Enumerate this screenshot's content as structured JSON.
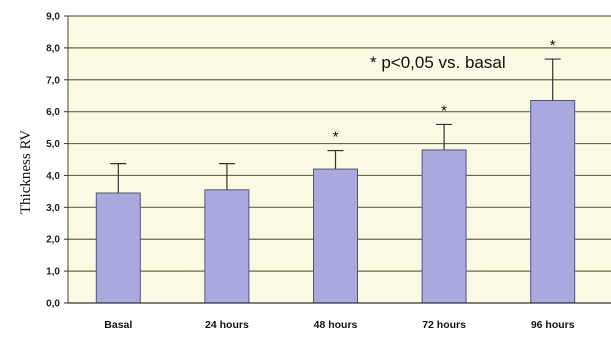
{
  "chart_data": {
    "type": "bar",
    "ylabel": "Thickness RV",
    "xlabel": "",
    "ylim": [
      0,
      9
    ],
    "yticks": [
      "0,0",
      "1,0",
      "2,0",
      "3,0",
      "4,0",
      "5,0",
      "6,0",
      "7,0",
      "8,0",
      "9,0"
    ],
    "grid": true,
    "categories": [
      "Basal",
      "24 hours",
      "48 hours",
      "72 hours",
      "96 hours"
    ],
    "values": [
      3.45,
      3.55,
      4.2,
      4.8,
      6.35
    ],
    "errors": [
      0.92,
      0.82,
      0.58,
      0.8,
      1.3
    ],
    "significant": [
      false,
      false,
      true,
      true,
      true
    ],
    "significance_marker": "*",
    "annotation": "* p<0,05 vs. basal",
    "colors": {
      "bar": "#a9a9e0",
      "bar_stroke": "#55557a",
      "grid": "#6b6b3a",
      "plot_bg": "#fbf8e3"
    }
  }
}
